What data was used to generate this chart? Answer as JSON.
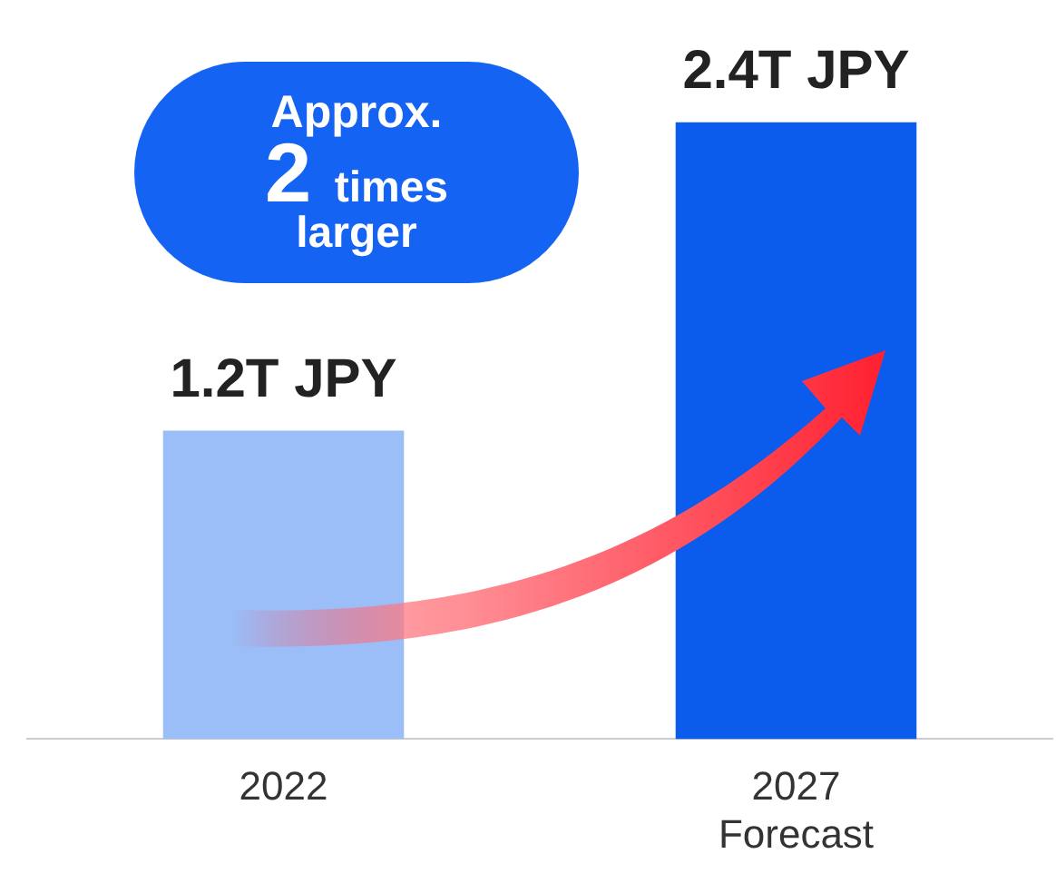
{
  "chart_data": {
    "type": "bar",
    "categories": [
      "2022",
      "2027\nForecast"
    ],
    "values": [
      1.2,
      2.4
    ],
    "colors": [
      "#9bbdf8",
      "#0b5ced"
    ],
    "value_labels": [
      "1.2T JPY",
      "2.4T JPY"
    ],
    "annotations": [
      "Approx. 2 times larger"
    ],
    "grid": false,
    "legend": false
  }
}
